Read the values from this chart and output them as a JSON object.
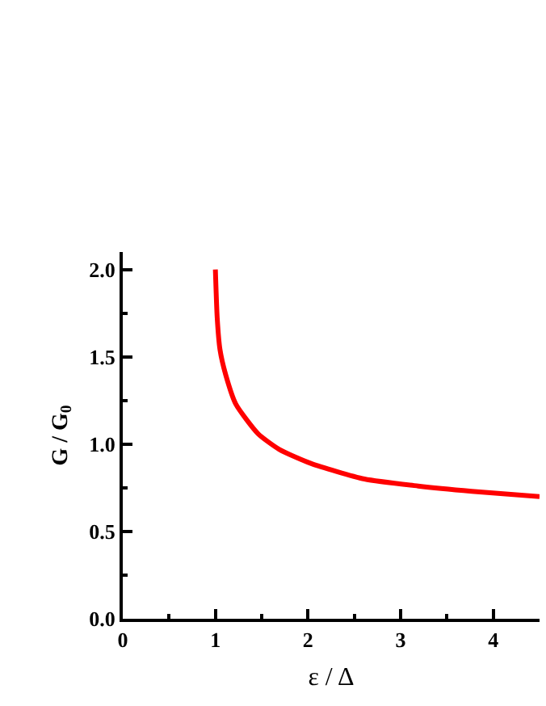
{
  "chart_data": {
    "type": "line",
    "xlabel": "ε / Δ",
    "ylabel": "G / G$_{0}$",
    "xlim": [
      0,
      4.5
    ],
    "ylim": [
      0,
      2.1
    ],
    "xticks": [
      0,
      1,
      2,
      3,
      4
    ],
    "yticks": [
      {
        "value": 0,
        "label": "0.0"
      },
      {
        "value": 0.5,
        "label": "0.5"
      },
      {
        "value": 1,
        "label": "1.0"
      },
      {
        "value": 1.5,
        "label": "1.5"
      },
      {
        "value": 2,
        "label": "2.0"
      }
    ],
    "marker": "none",
    "line_style": "solid",
    "series": [
      {
        "color": "#ff0000",
        "x": [
          1.0,
          1.02,
          1.05,
          1.11,
          1.22,
          1.46,
          1.69,
          2.03,
          2.61,
          3.19,
          3.77,
          4.5
        ],
        "values": [
          2.0,
          1.72,
          1.54,
          1.4,
          1.23,
          1.06,
          0.97,
          0.89,
          0.8,
          0.76,
          0.73,
          0.7
        ]
      }
    ]
  }
}
